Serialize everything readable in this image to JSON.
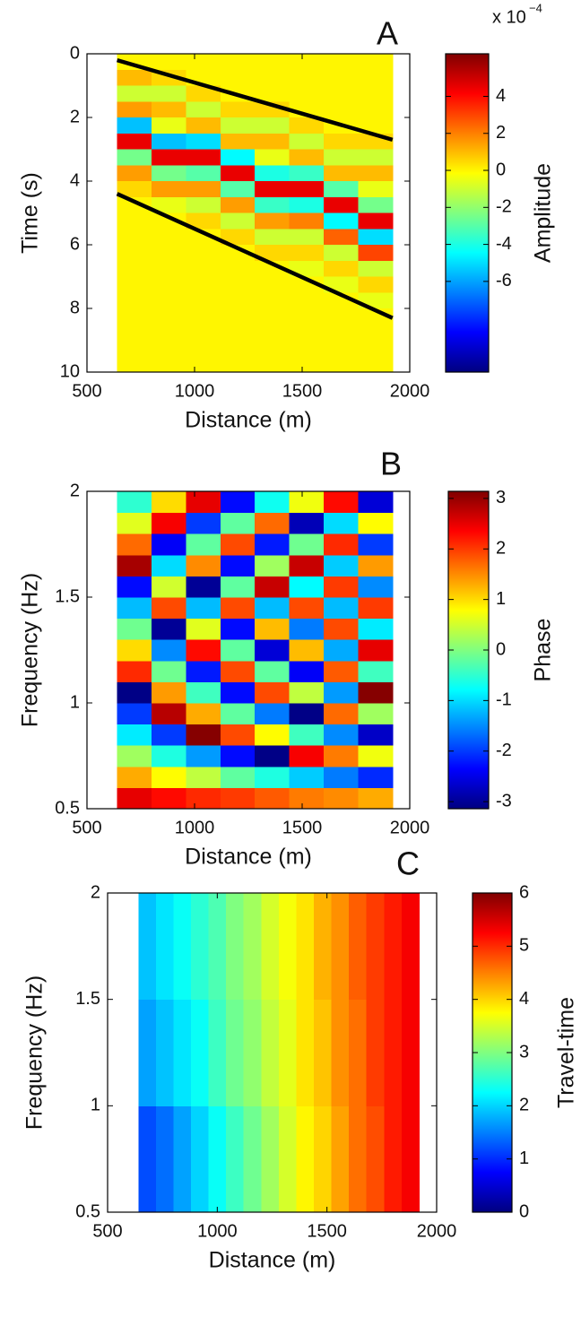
{
  "chart_data": [
    {
      "type": "heatmap",
      "title": "A",
      "xlabel": "Distance (m)",
      "ylabel": "Time (s)",
      "xlim": [
        500,
        2000
      ],
      "xticks": [
        500,
        1000,
        1500,
        2000
      ],
      "ylim": [
        0,
        10
      ],
      "yticks": [
        0,
        2,
        4,
        6,
        8,
        10
      ],
      "y_reverse": true,
      "colormap": "jet",
      "x": [
        720,
        880,
        1040,
        1200,
        1360,
        1520,
        1680,
        1840
      ],
      "y": [
        0.25,
        0.75,
        1.25,
        1.75,
        2.25,
        2.75,
        3.25,
        3.75,
        4.25,
        4.75,
        5.25,
        5.75,
        6.25,
        6.75,
        7.25,
        7.75,
        8.25,
        8.75,
        9.25,
        9.75
      ],
      "z": [
        [
          0,
          0,
          0,
          0,
          0,
          0,
          0,
          0
        ],
        [
          1,
          0.5,
          0,
          0,
          0,
          0,
          0,
          0
        ],
        [
          -1,
          -1,
          0.5,
          0,
          0,
          0,
          0,
          0
        ],
        [
          1.5,
          1,
          -1,
          0.5,
          0.5,
          0,
          0,
          0
        ],
        [
          -5.5,
          -0.5,
          1,
          -1,
          -1,
          0.5,
          0,
          0
        ],
        [
          4.5,
          -5.5,
          -5,
          1,
          1,
          -1,
          0.5,
          0.5
        ],
        [
          -2.5,
          4.5,
          4.5,
          -4.5,
          -0.5,
          1,
          -1,
          -1
        ],
        [
          1.5,
          -2.5,
          -3,
          4.5,
          -4,
          -3.5,
          1,
          1
        ],
        [
          0.5,
          1.5,
          1.5,
          -3,
          4.5,
          4.5,
          -3,
          -0.5
        ],
        [
          0,
          -0.5,
          -1,
          1.5,
          -3.5,
          -4,
          4.5,
          -2.5
        ],
        [
          0,
          0,
          0.5,
          -1,
          1.5,
          2,
          -4.5,
          4.5
        ],
        [
          0,
          0,
          0,
          0.5,
          -1,
          -1,
          2.5,
          -5
        ],
        [
          0,
          0,
          0,
          0,
          0.5,
          0.5,
          -1,
          3
        ],
        [
          0,
          0,
          0,
          0,
          0,
          -0.5,
          0.5,
          -1
        ],
        [
          0,
          0,
          0,
          0,
          0,
          0,
          -0.5,
          0.5
        ],
        [
          0,
          0,
          0,
          0,
          0,
          0,
          0,
          -0.5
        ],
        [
          0,
          0,
          0,
          0,
          0,
          0,
          0,
          0
        ],
        [
          0,
          0,
          0,
          0,
          0,
          0,
          0,
          0
        ],
        [
          0,
          0,
          0,
          0,
          0,
          0,
          0,
          0
        ],
        [
          0,
          0,
          0,
          0,
          0,
          0,
          0,
          0
        ]
      ],
      "lines": [
        {
          "x": [
            640,
            1920
          ],
          "y": [
            0.2,
            2.7
          ]
        },
        {
          "x": [
            640,
            1920
          ],
          "y": [
            4.4,
            8.3
          ]
        }
      ],
      "line_color": "#000000",
      "colorbar": {
        "label": "Amplitude",
        "clim": [
          -10.9,
          6.3
        ],
        "ticks": [
          4,
          2,
          0,
          -2,
          -4,
          -6
        ],
        "multiplier": "x 10",
        "multiplier_exponent": "−4"
      }
    },
    {
      "type": "heatmap",
      "title": "B",
      "xlabel": "Distance (m)",
      "ylabel": "Frequency (Hz)",
      "xlim": [
        500,
        2000
      ],
      "xticks": [
        500,
        1000,
        1500,
        2000
      ],
      "ylim": [
        0.5,
        2
      ],
      "yticks": [
        0.5,
        1,
        1.5,
        2
      ],
      "colormap": "jet",
      "x": [
        720,
        880,
        1040,
        1200,
        1360,
        1520,
        1680,
        1840
      ],
      "y": [
        0.55,
        0.65,
        0.75,
        0.85,
        0.95,
        1.05,
        1.15,
        1.25,
        1.35,
        1.45,
        1.55,
        1.65,
        1.75,
        1.85,
        1.95
      ],
      "z": [
        [
          2.5,
          2.3,
          2.1,
          2,
          1.8,
          1.6,
          1.5,
          1.3
        ],
        [
          1.3,
          0.8,
          0.4,
          -0.2,
          -0.6,
          -1.1,
          -1.6,
          -2.1
        ],
        [
          0.2,
          -0.6,
          -1.4,
          -2.3,
          -3.1,
          2.4,
          1.6,
          0.7
        ],
        [
          -0.9,
          -2,
          3.1,
          1.9,
          0.8,
          -0.4,
          -1.5,
          -2.7
        ],
        [
          -2,
          2.8,
          1.3,
          -0.2,
          -1.6,
          -3.1,
          1.7,
          0.2
        ],
        [
          -3.1,
          1.4,
          -0.4,
          -2.3,
          1.9,
          0.4,
          -1.4,
          3.1
        ],
        [
          2.1,
          -0.1,
          -2.2,
          1.9,
          -0.2,
          -2.4,
          1.8,
          -0.4
        ],
        [
          1,
          -1.5,
          2.3,
          -0.2,
          -2.6,
          1.2,
          -1.3,
          2.5
        ],
        [
          -0.1,
          -3,
          0.6,
          -2.3,
          1.2,
          -1.6,
          1.9,
          -0.9
        ],
        [
          -1.2,
          1.9,
          -1.2,
          1.9,
          -1.2,
          1.9,
          -1.2,
          2
        ],
        [
          -2.3,
          0.5,
          -3,
          -0.2,
          2.7,
          -0.8,
          2,
          -1.5
        ],
        [
          2.9,
          -1,
          1.5,
          -2.3,
          0.2,
          2.7,
          -1.1,
          1.4
        ],
        [
          1.7,
          -2.4,
          -0.2,
          1.9,
          -2.2,
          -0.1,
          2.1,
          -2
        ],
        [
          0.6,
          2.4,
          -2,
          -0.2,
          1.7,
          -2.8,
          -1,
          0.8
        ],
        [
          -0.5,
          1,
          2.5,
          -2.3,
          -0.7,
          0.7,
          2.3,
          -2.6
        ]
      ],
      "colorbar": {
        "label": "Phase",
        "clim": [
          -3.14,
          3.14
        ],
        "ticks": [
          3,
          2,
          1,
          0,
          -1,
          -2,
          -3
        ]
      }
    },
    {
      "type": "heatmap",
      "title": "C",
      "xlabel": "Distance (m)",
      "ylabel": "Frequency (Hz)",
      "xlim": [
        500,
        2000
      ],
      "xticks": [
        500,
        1000,
        1500,
        2000
      ],
      "ylim": [
        0.5,
        2
      ],
      "yticks": [
        0.5,
        1,
        1.5,
        2
      ],
      "colormap": "jet",
      "x": [
        680,
        760,
        840,
        920,
        1000,
        1080,
        1160,
        1240,
        1320,
        1400,
        1480,
        1560,
        1640,
        1720,
        1800,
        1880
      ],
      "y": [
        0.75,
        1.25,
        1.75
      ],
      "z": [
        [
          1.2,
          1.4,
          1.7,
          2.0,
          2.3,
          2.6,
          2.9,
          3.2,
          3.5,
          3.8,
          4.0,
          4.3,
          4.6,
          4.8,
          5.1,
          5.3
        ],
        [
          1.7,
          1.9,
          2.1,
          2.3,
          2.6,
          2.9,
          3.1,
          3.4,
          3.6,
          3.9,
          4.1,
          4.4,
          4.6,
          4.9,
          5.1,
          5.3
        ],
        [
          1.9,
          2.1,
          2.3,
          2.5,
          2.7,
          3.0,
          3.2,
          3.5,
          3.7,
          3.9,
          4.2,
          4.4,
          4.7,
          4.9,
          5.1,
          5.3
        ]
      ],
      "colorbar": {
        "label": "Travel-time",
        "clim": [
          0,
          6
        ],
        "ticks": [
          0,
          1,
          2,
          3,
          4,
          5,
          6
        ]
      }
    }
  ]
}
